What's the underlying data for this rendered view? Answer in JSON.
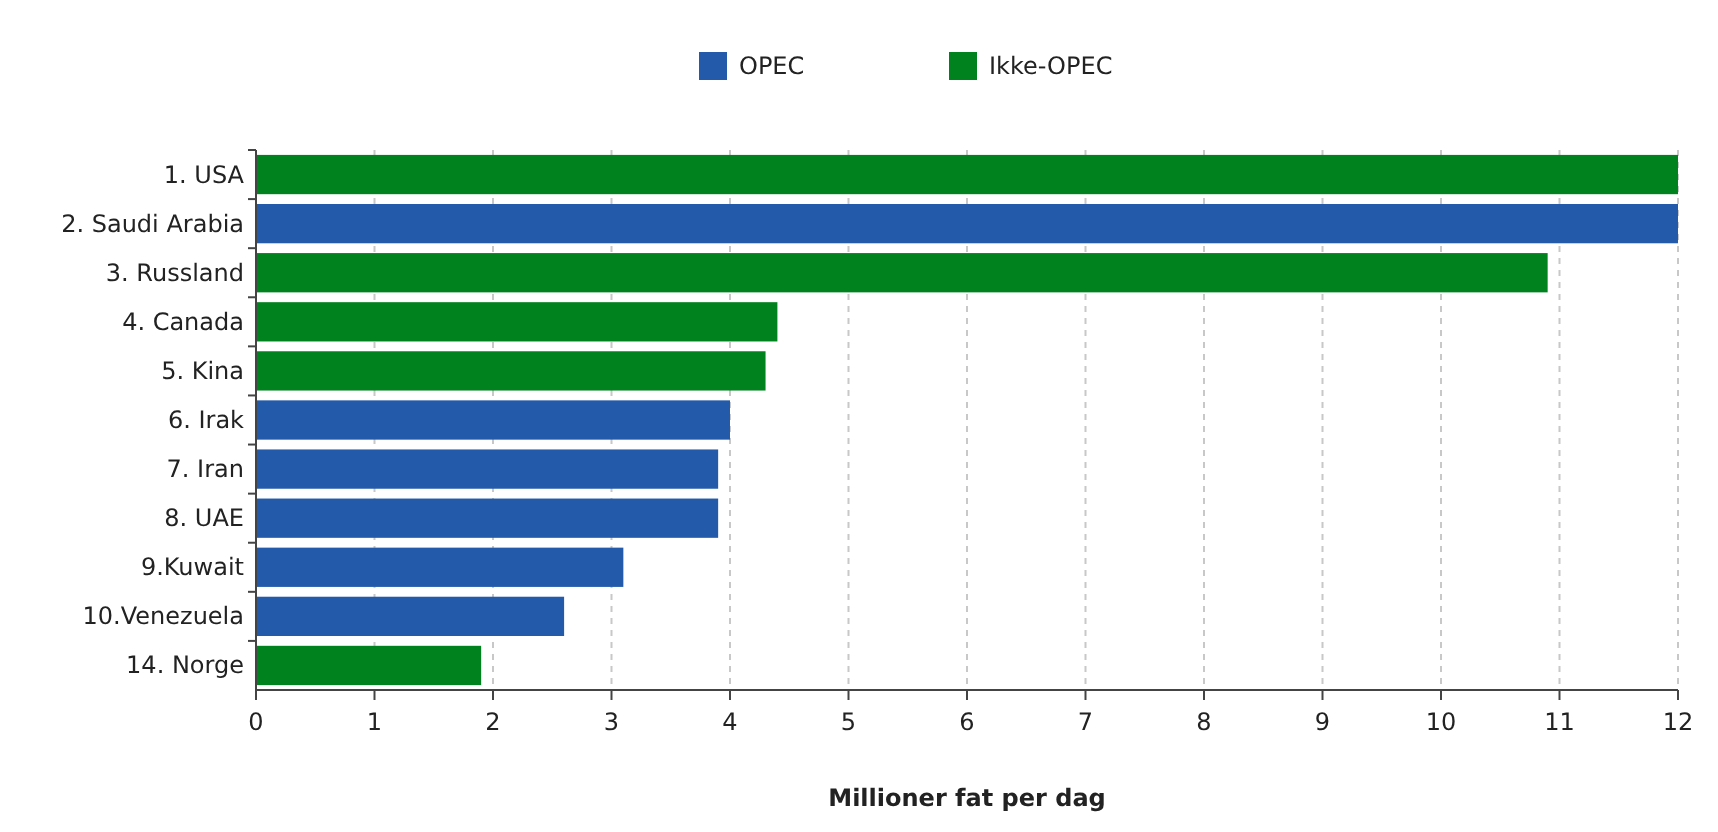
{
  "chart_data": {
    "type": "bar",
    "orientation": "horizontal",
    "xlabel": "Millioner fat per dag",
    "categories": [
      "1. USA",
      "2. Saudi Arabia",
      "3. Russland",
      "4. Canada",
      "5. Kina",
      "6. Irak",
      "7. Iran",
      "8. UAE",
      "9.Kuwait",
      "10.Venezuela",
      "14. Norge"
    ],
    "series": [
      {
        "name": "OPEC",
        "color": "#235aa9",
        "values": [
          null,
          12.0,
          null,
          null,
          null,
          4.0,
          3.9,
          3.9,
          3.1,
          2.6,
          null
        ]
      },
      {
        "name": "Ikke-OPEC",
        "color": "#00821f",
        "values": [
          12.0,
          null,
          10.9,
          4.4,
          4.3,
          null,
          null,
          null,
          null,
          null,
          1.9
        ]
      }
    ],
    "xlim": [
      0,
      12
    ],
    "xticks": [
      0,
      1,
      2,
      3,
      4,
      5,
      6,
      7,
      8,
      9,
      10,
      11,
      12
    ],
    "grid": "x",
    "legend": "top"
  }
}
